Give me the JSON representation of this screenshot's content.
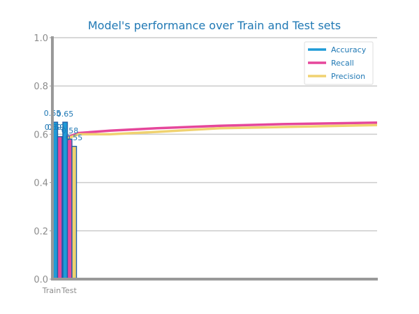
{
  "chart_data": {
    "type": "bar",
    "title": "Model's performance over Train and Test sets",
    "categories": [
      "Train",
      "Test"
    ],
    "series": [
      {
        "name": "Accuracy",
        "color": "#1f9bd7",
        "values": [
          0.65,
          0.65
        ],
        "data_labels": [
          "0.65",
          "0.65"
        ]
      },
      {
        "name": "Recall",
        "color": "#e5479b",
        "values": [
          0.59,
          0.58
        ],
        "data_labels": [
          "0.59",
          "0.58"
        ]
      },
      {
        "name": "Precision",
        "color": "#f0d270",
        "values": [
          0.59,
          0.55
        ],
        "data_labels": [
          "0.59",
          "0.55"
        ]
      }
    ],
    "overlay_lines": [
      {
        "name": "Recall",
        "color": "#e5479b",
        "x": [
          0,
          0.05,
          0.15,
          0.3,
          0.5,
          0.7,
          1.0
        ],
        "y": [
          0.58,
          0.605,
          0.615,
          0.625,
          0.635,
          0.642,
          0.648
        ]
      },
      {
        "name": "Precision",
        "color": "#f0d270",
        "x": [
          0,
          0.05,
          0.15,
          0.3,
          0.5,
          0.7,
          1.0
        ],
        "y": [
          0.575,
          0.6,
          0.6,
          0.61,
          0.625,
          0.63,
          0.638
        ]
      }
    ],
    "ylim": [
      0,
      1.0
    ],
    "yticks": [
      "0.0",
      "0.2",
      "0.4",
      "0.6",
      "0.8",
      "1.0"
    ],
    "grid": true,
    "legend": "top-right"
  }
}
